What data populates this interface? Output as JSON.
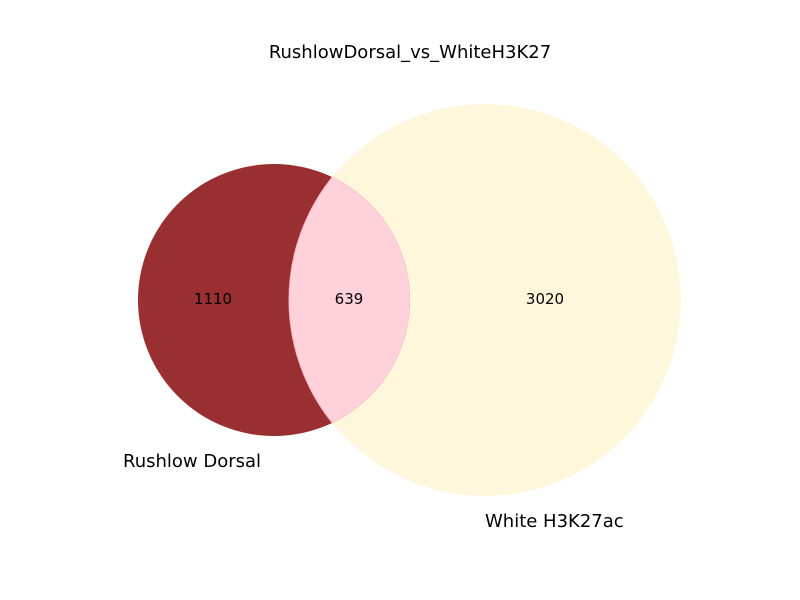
{
  "title": "RushlowDorsal_vs_WhiteH3K27",
  "venn": {
    "sets": [
      {
        "label": "Rushlow Dorsal",
        "only_count": "1110",
        "color": "#992f30"
      },
      {
        "label": "White H3K27ac",
        "only_count": "3020",
        "color": "#fff7dc"
      }
    ],
    "intersection": {
      "count": "639",
      "color": "#ffd1da"
    }
  }
}
